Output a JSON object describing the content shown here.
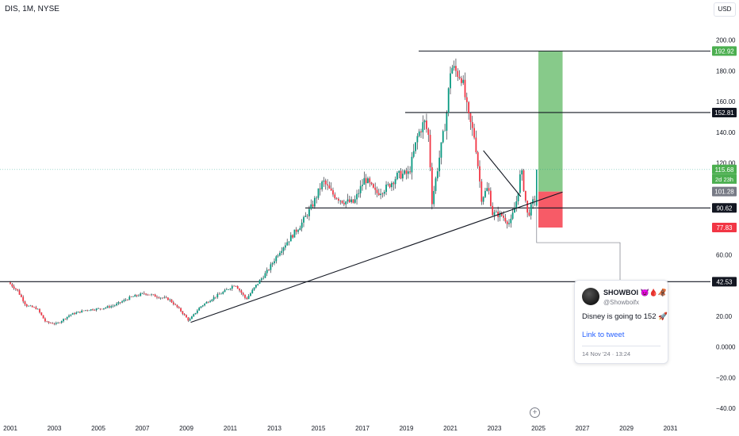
{
  "header": {
    "symbol_title": "DIS, 1M, NYSE",
    "currency": "USD"
  },
  "chart_data": {
    "type": "candlestick",
    "title": "DIS, 1M, NYSE",
    "ylim": [
      -40,
      205
    ],
    "xlim": [
      2001,
      2032
    ],
    "y_ticks": [
      "200.00",
      "180.00",
      "160.00",
      "140.00",
      "120.00",
      "60.00",
      "20.00",
      "0.0000",
      "−20.00",
      "−40.00"
    ],
    "y_tick_values": [
      200,
      180,
      160,
      140,
      120,
      60,
      20,
      0,
      -20,
      -40
    ],
    "x_ticks": [
      "2001",
      "2003",
      "2005",
      "2007",
      "2009",
      "2011",
      "2013",
      "2015",
      "2017",
      "2019",
      "2021",
      "2023",
      "2025",
      "2027",
      "2029",
      "2031"
    ],
    "x_tick_values": [
      2001,
      2003,
      2005,
      2007,
      2009,
      2011,
      2013,
      2015,
      2017,
      2019,
      2021,
      2023,
      2025,
      2027,
      2029,
      2031
    ],
    "price_path": [
      [
        2001.0,
        42
      ],
      [
        2001.4,
        37
      ],
      [
        2001.8,
        27
      ],
      [
        2002.3,
        25
      ],
      [
        2002.7,
        16
      ],
      [
        2003.2,
        15
      ],
      [
        2003.8,
        21
      ],
      [
        2004.5,
        24
      ],
      [
        2005.2,
        25
      ],
      [
        2005.8,
        27
      ],
      [
        2006.5,
        32
      ],
      [
        2007.2,
        35
      ],
      [
        2007.7,
        33
      ],
      [
        2008.3,
        31
      ],
      [
        2008.8,
        24
      ],
      [
        2009.2,
        17
      ],
      [
        2009.7,
        26
      ],
      [
        2010.3,
        32
      ],
      [
        2010.8,
        36
      ],
      [
        2011.3,
        41
      ],
      [
        2011.8,
        31
      ],
      [
        2012.3,
        41
      ],
      [
        2012.8,
        50
      ],
      [
        2013.3,
        62
      ],
      [
        2013.8,
        71
      ],
      [
        2014.3,
        80
      ],
      [
        2014.8,
        92
      ],
      [
        2015.3,
        108
      ],
      [
        2015.7,
        100
      ],
      [
        2016.2,
        95
      ],
      [
        2016.7,
        94
      ],
      [
        2017.2,
        110
      ],
      [
        2017.7,
        100
      ],
      [
        2018.2,
        104
      ],
      [
        2018.7,
        112
      ],
      [
        2019.2,
        113
      ],
      [
        2019.6,
        138
      ],
      [
        2019.9,
        147
      ],
      [
        2020.1,
        137
      ],
      [
        2020.25,
        95
      ],
      [
        2020.6,
        125
      ],
      [
        2020.9,
        150
      ],
      [
        2021.1,
        183
      ],
      [
        2021.3,
        180
      ],
      [
        2021.6,
        176
      ],
      [
        2021.9,
        150
      ],
      [
        2022.2,
        136
      ],
      [
        2022.5,
        97
      ],
      [
        2022.8,
        104
      ],
      [
        2023.0,
        87
      ],
      [
        2023.4,
        86
      ],
      [
        2023.8,
        80
      ],
      [
        2024.1,
        96
      ],
      [
        2024.3,
        116
      ],
      [
        2024.6,
        85
      ],
      [
        2024.9,
        97
      ]
    ],
    "horizontal_levels": [
      {
        "price": 192.92,
        "label": "192.92",
        "color": "#4caf50"
      },
      {
        "price": 152.81,
        "label": "152.81",
        "color": "#131722"
      },
      {
        "price": 90.62,
        "label": "90.62",
        "color": "#131722"
      },
      {
        "price": 42.53,
        "label": "42.53",
        "color": "#131722"
      }
    ],
    "price_badges": [
      {
        "price": 115.68,
        "label": "115.68",
        "sublabel": "2d 23h",
        "color": "#4caf50"
      },
      {
        "price": 101.28,
        "label": "101.28",
        "color": "#787b86"
      },
      {
        "price": 77.83,
        "label": "77.83",
        "color": "#f23645"
      }
    ],
    "current_price": 115.68,
    "trendlines": [
      {
        "from": [
          2009.2,
          16
        ],
        "to": [
          2026.1,
          101
        ]
      },
      {
        "from": [
          2022.5,
          128
        ],
        "to": [
          2024.2,
          98
        ]
      }
    ],
    "long_position": {
      "x_start": 2025.0,
      "x_end": 2026.1,
      "entry": 101.28,
      "target": 192.92,
      "stop": 77.83,
      "profit_color": "#81c784",
      "loss_color": "#f7525f"
    },
    "price_line_color": "#089981",
    "up_color": "#089981",
    "down_color": "#f23645",
    "grid": false,
    "legend": "none"
  },
  "tweet": {
    "name": "SHOWBOI",
    "name_emoji": "😈🩸🦧",
    "handle": "@Showboifx",
    "text": "Disney is going to 152",
    "text_emoji": "🚀",
    "link": "Link to tweet",
    "date": "14 Nov '24 · 13:24"
  }
}
